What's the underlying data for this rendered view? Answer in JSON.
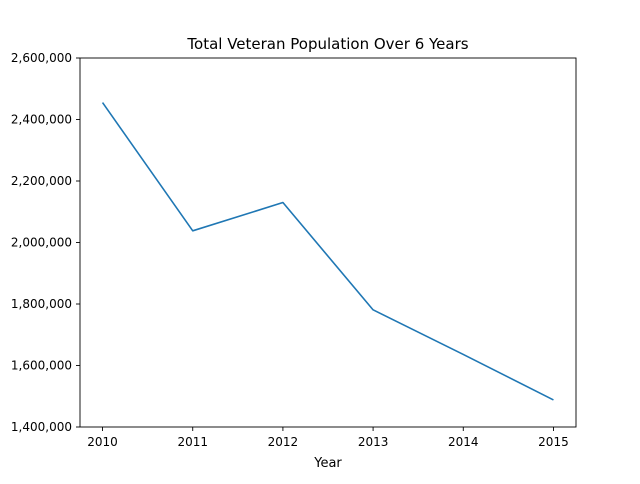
{
  "chart_data": {
    "type": "line",
    "title": "Total Veteran Population Over 6 Years",
    "xlabel": "Year",
    "ylabel": "",
    "x": [
      2010,
      2011,
      2012,
      2013,
      2014,
      2015
    ],
    "series": [
      {
        "values": [
          2455000,
          2038000,
          2130000,
          1781000,
          1636000,
          1488000
        ],
        "color": "#1f77b4"
      }
    ],
    "xlim": [
      2009.75,
      2015.25
    ],
    "ylim": [
      1400000,
      2600000
    ],
    "x_ticks": [
      2010,
      2011,
      2012,
      2013,
      2014,
      2015
    ],
    "x_tick_labels": [
      "2010",
      "2011",
      "2012",
      "2013",
      "2014",
      "2015"
    ],
    "y_ticks": [
      1400000,
      1600000,
      1800000,
      2000000,
      2200000,
      2400000,
      2600000
    ],
    "y_tick_labels": [
      "1,400,000",
      "1,600,000",
      "1,800,000",
      "2,000,000",
      "2,200,000",
      "2,400,000",
      "2,600,000"
    ],
    "grid": false,
    "legend": "none"
  }
}
